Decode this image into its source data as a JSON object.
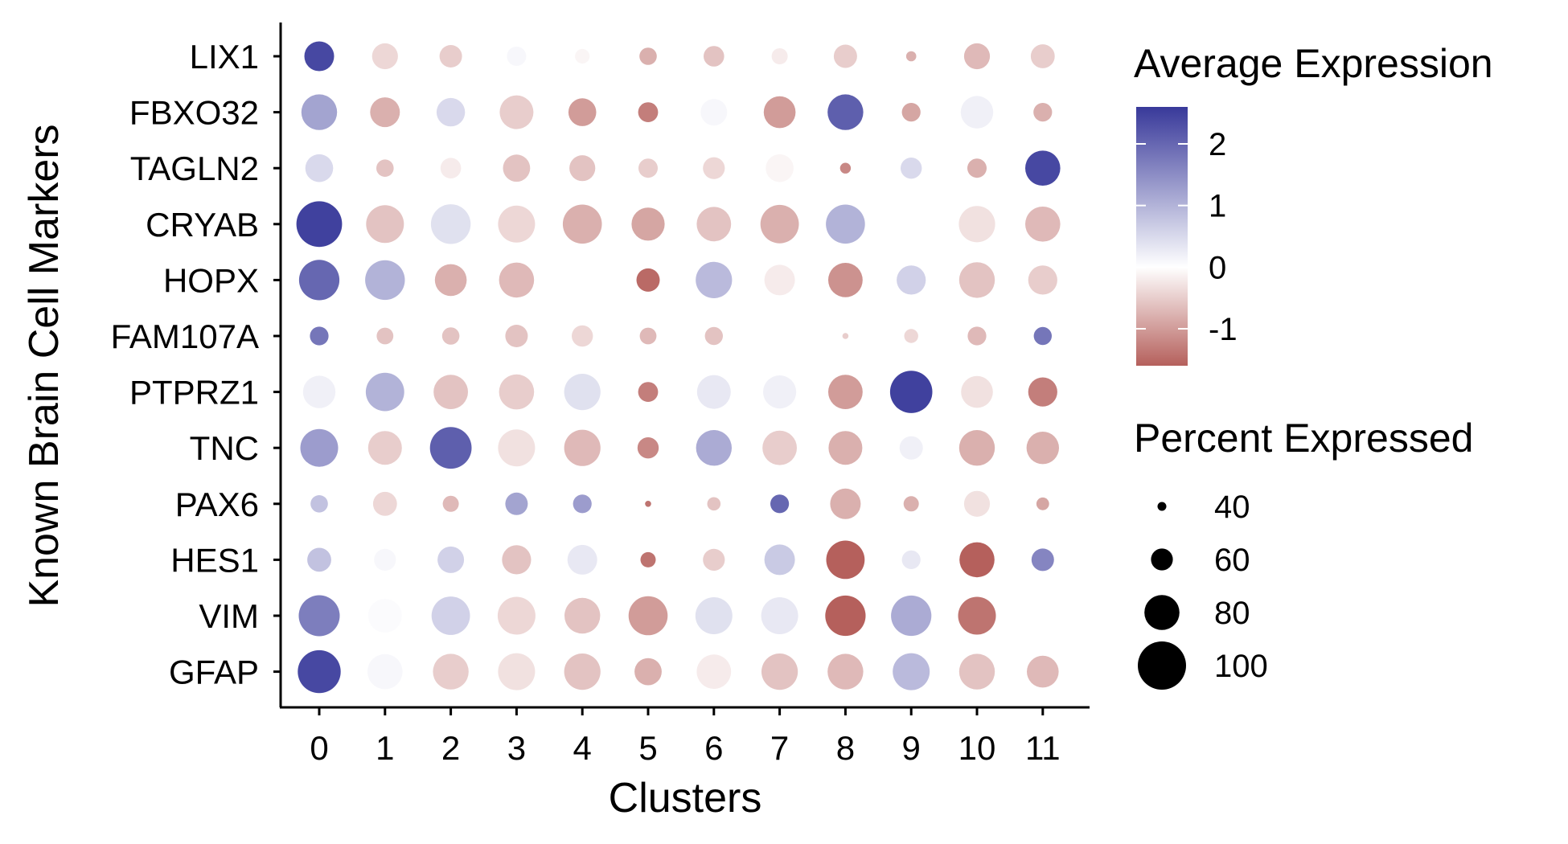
{
  "chart_data": {
    "type": "dotplot",
    "xlabel": "Clusters",
    "ylabel": "Known Brain Cell Markers",
    "categories": [
      "0",
      "1",
      "2",
      "3",
      "4",
      "5",
      "6",
      "7",
      "8",
      "9",
      "10",
      "11"
    ],
    "genes": [
      "LIX1",
      "FBXO32",
      "TAGLN2",
      "CRYAB",
      "HOPX",
      "FAM107A",
      "PTPRZ1",
      "TNC",
      "PAX6",
      "HES1",
      "VIM",
      "GFAP"
    ],
    "avg_expression": [
      [
        2.4,
        -0.4,
        -0.5,
        0.1,
        -0.1,
        -0.8,
        -0.6,
        -0.2,
        -0.5,
        -0.8,
        -0.7,
        -0.5
      ],
      [
        1.2,
        -0.8,
        0.5,
        -0.5,
        -1.0,
        -1.3,
        0.1,
        -1.0,
        2.1,
        -0.9,
        0.2,
        -0.8
      ],
      [
        0.5,
        -0.6,
        -0.2,
        -0.6,
        -0.6,
        -0.5,
        -0.4,
        -0.1,
        -1.2,
        0.5,
        -0.8,
        2.4
      ],
      [
        2.5,
        -0.6,
        0.4,
        -0.4,
        -0.8,
        -0.9,
        -0.6,
        -0.8,
        1.0,
        0.0,
        -0.3,
        -0.7
      ],
      [
        2.0,
        1.0,
        -0.8,
        -0.7,
        0.0,
        -1.5,
        0.9,
        -0.2,
        -1.1,
        0.6,
        -0.6,
        -0.5
      ],
      [
        1.8,
        -0.6,
        -0.6,
        -0.6,
        -0.4,
        -0.7,
        -0.6,
        0.0,
        -0.5,
        -0.4,
        -0.7,
        1.8
      ],
      [
        0.2,
        1.0,
        -0.6,
        -0.5,
        0.4,
        -1.3,
        0.3,
        0.2,
        -1.0,
        2.5,
        -0.3,
        -1.3
      ],
      [
        1.3,
        -0.5,
        2.1,
        -0.3,
        -0.7,
        -1.2,
        1.1,
        -0.5,
        -0.8,
        0.2,
        -0.8,
        -0.8
      ],
      [
        0.8,
        -0.4,
        -0.7,
        1.2,
        1.3,
        -1.4,
        -0.6,
        2.0,
        -0.8,
        -0.8,
        -0.3,
        -0.9
      ],
      [
        0.8,
        0.1,
        0.6,
        -0.6,
        0.3,
        -1.4,
        -0.5,
        0.7,
        -2.0,
        0.3,
        -1.6,
        1.6
      ],
      [
        1.7,
        0.05,
        0.6,
        -0.4,
        -0.6,
        -1.0,
        0.4,
        0.3,
        -2.1,
        1.1,
        -1.4,
        0.0
      ],
      [
        2.4,
        0.1,
        -0.5,
        -0.3,
        -0.6,
        -0.8,
        -0.2,
        -0.6,
        -0.7,
        0.9,
        -0.6,
        -0.7
      ]
    ],
    "pct_expressed": [
      [
        72,
        66,
        61,
        56,
        49,
        53,
        58,
        51,
        62,
        42,
        66,
        63
      ],
      [
        81,
        72,
        70,
        78,
        69,
        57,
        67,
        75,
        81,
        55,
        76,
        55
      ],
      [
        69,
        53,
        58,
        68,
        66,
        56,
        60,
        69,
        43,
        59,
        56,
        80
      ],
      [
        96,
        84,
        87,
        83,
        86,
        77,
        79,
        85,
        86,
        69,
        82,
        80
      ],
      [
        88,
        87,
        75,
        80,
        71,
        62,
        82,
        73,
        79,
        71,
        81,
        71
      ],
      [
        55,
        52,
        53,
        61,
        59,
        52,
        54,
        50,
        36,
        48,
        55,
        54
      ],
      [
        76,
        85,
        79,
        80,
        82,
        57,
        78,
        77,
        79,
        91,
        75,
        71
      ],
      [
        84,
        78,
        90,
        83,
        82,
        59,
        81,
        79,
        78,
        62,
        81,
        76
      ],
      [
        53,
        63,
        51,
        61,
        55,
        36,
        47,
        55,
        73,
        50,
        66,
        46
      ],
      [
        63,
        60,
        67,
        71,
        72,
        50,
        60,
        73,
        85,
        55,
        80,
        61
      ],
      [
        89,
        78,
        85,
        84,
        81,
        86,
        83,
        83,
        88,
        88,
        84,
        77
      ],
      [
        92,
        80,
        81,
        83,
        82,
        68,
        79,
        82,
        81,
        83,
        81,
        75
      ]
    ],
    "colorbar": {
      "title": "Average Expression",
      "ticks": [
        2,
        1,
        0,
        -1
      ],
      "range": [
        -1.6,
        2.6
      ],
      "low_color": "#b5605c",
      "mid_color": "#ffffff",
      "high_color": "#38399a"
    },
    "size_legend": {
      "title": "Percent Expressed",
      "values": [
        40,
        60,
        80,
        100
      ]
    }
  }
}
